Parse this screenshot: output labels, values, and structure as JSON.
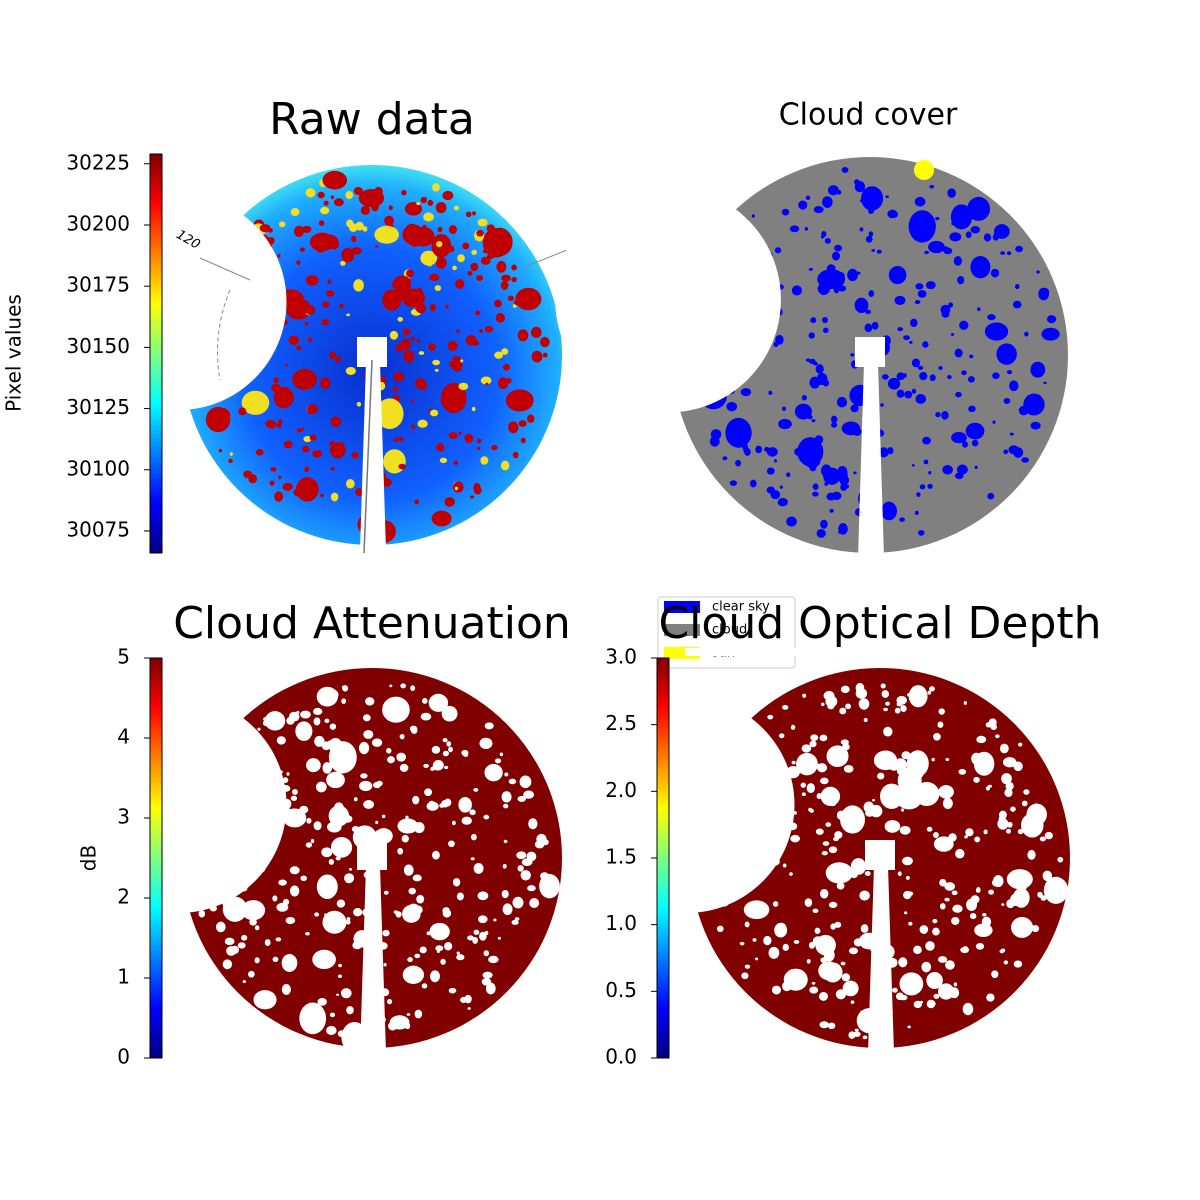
{
  "chart_data": [
    {
      "type": "image",
      "title": "Raw data",
      "annotation": "120",
      "colorbar": {
        "label": "Pixel values",
        "colormap": "jet",
        "ylim": [
          30066,
          30229
        ],
        "yticks": [
          30075,
          30100,
          30125,
          30150,
          30175,
          30200,
          30225
        ]
      }
    },
    {
      "type": "image",
      "title": "Cloud cover",
      "series": [
        {
          "name": "clear sky",
          "color": "#0000ff"
        },
        {
          "name": "cloud",
          "color": "#808080"
        },
        {
          "name": "sun",
          "color": "#ffff00"
        }
      ],
      "legend": "lower left"
    },
    {
      "type": "image",
      "title": "Cloud Attenuation",
      "colorbar": {
        "label": "dB",
        "colormap": "jet",
        "ylim": [
          0,
          5
        ],
        "yticks": [
          0,
          1,
          2,
          3,
          4,
          5
        ]
      }
    },
    {
      "type": "image",
      "title": "Cloud Optical Depth",
      "colorbar": {
        "colormap": "jet",
        "ylim": [
          0,
          3
        ],
        "yticks": [
          {
            "value": 0,
            "label": "0.0"
          },
          0.5,
          {
            "value": 1,
            "label": "1.0"
          },
          1.5,
          {
            "value": 2,
            "label": "2.0"
          },
          2.5,
          {
            "value": 3,
            "label": "3.0"
          }
        ]
      }
    }
  ]
}
